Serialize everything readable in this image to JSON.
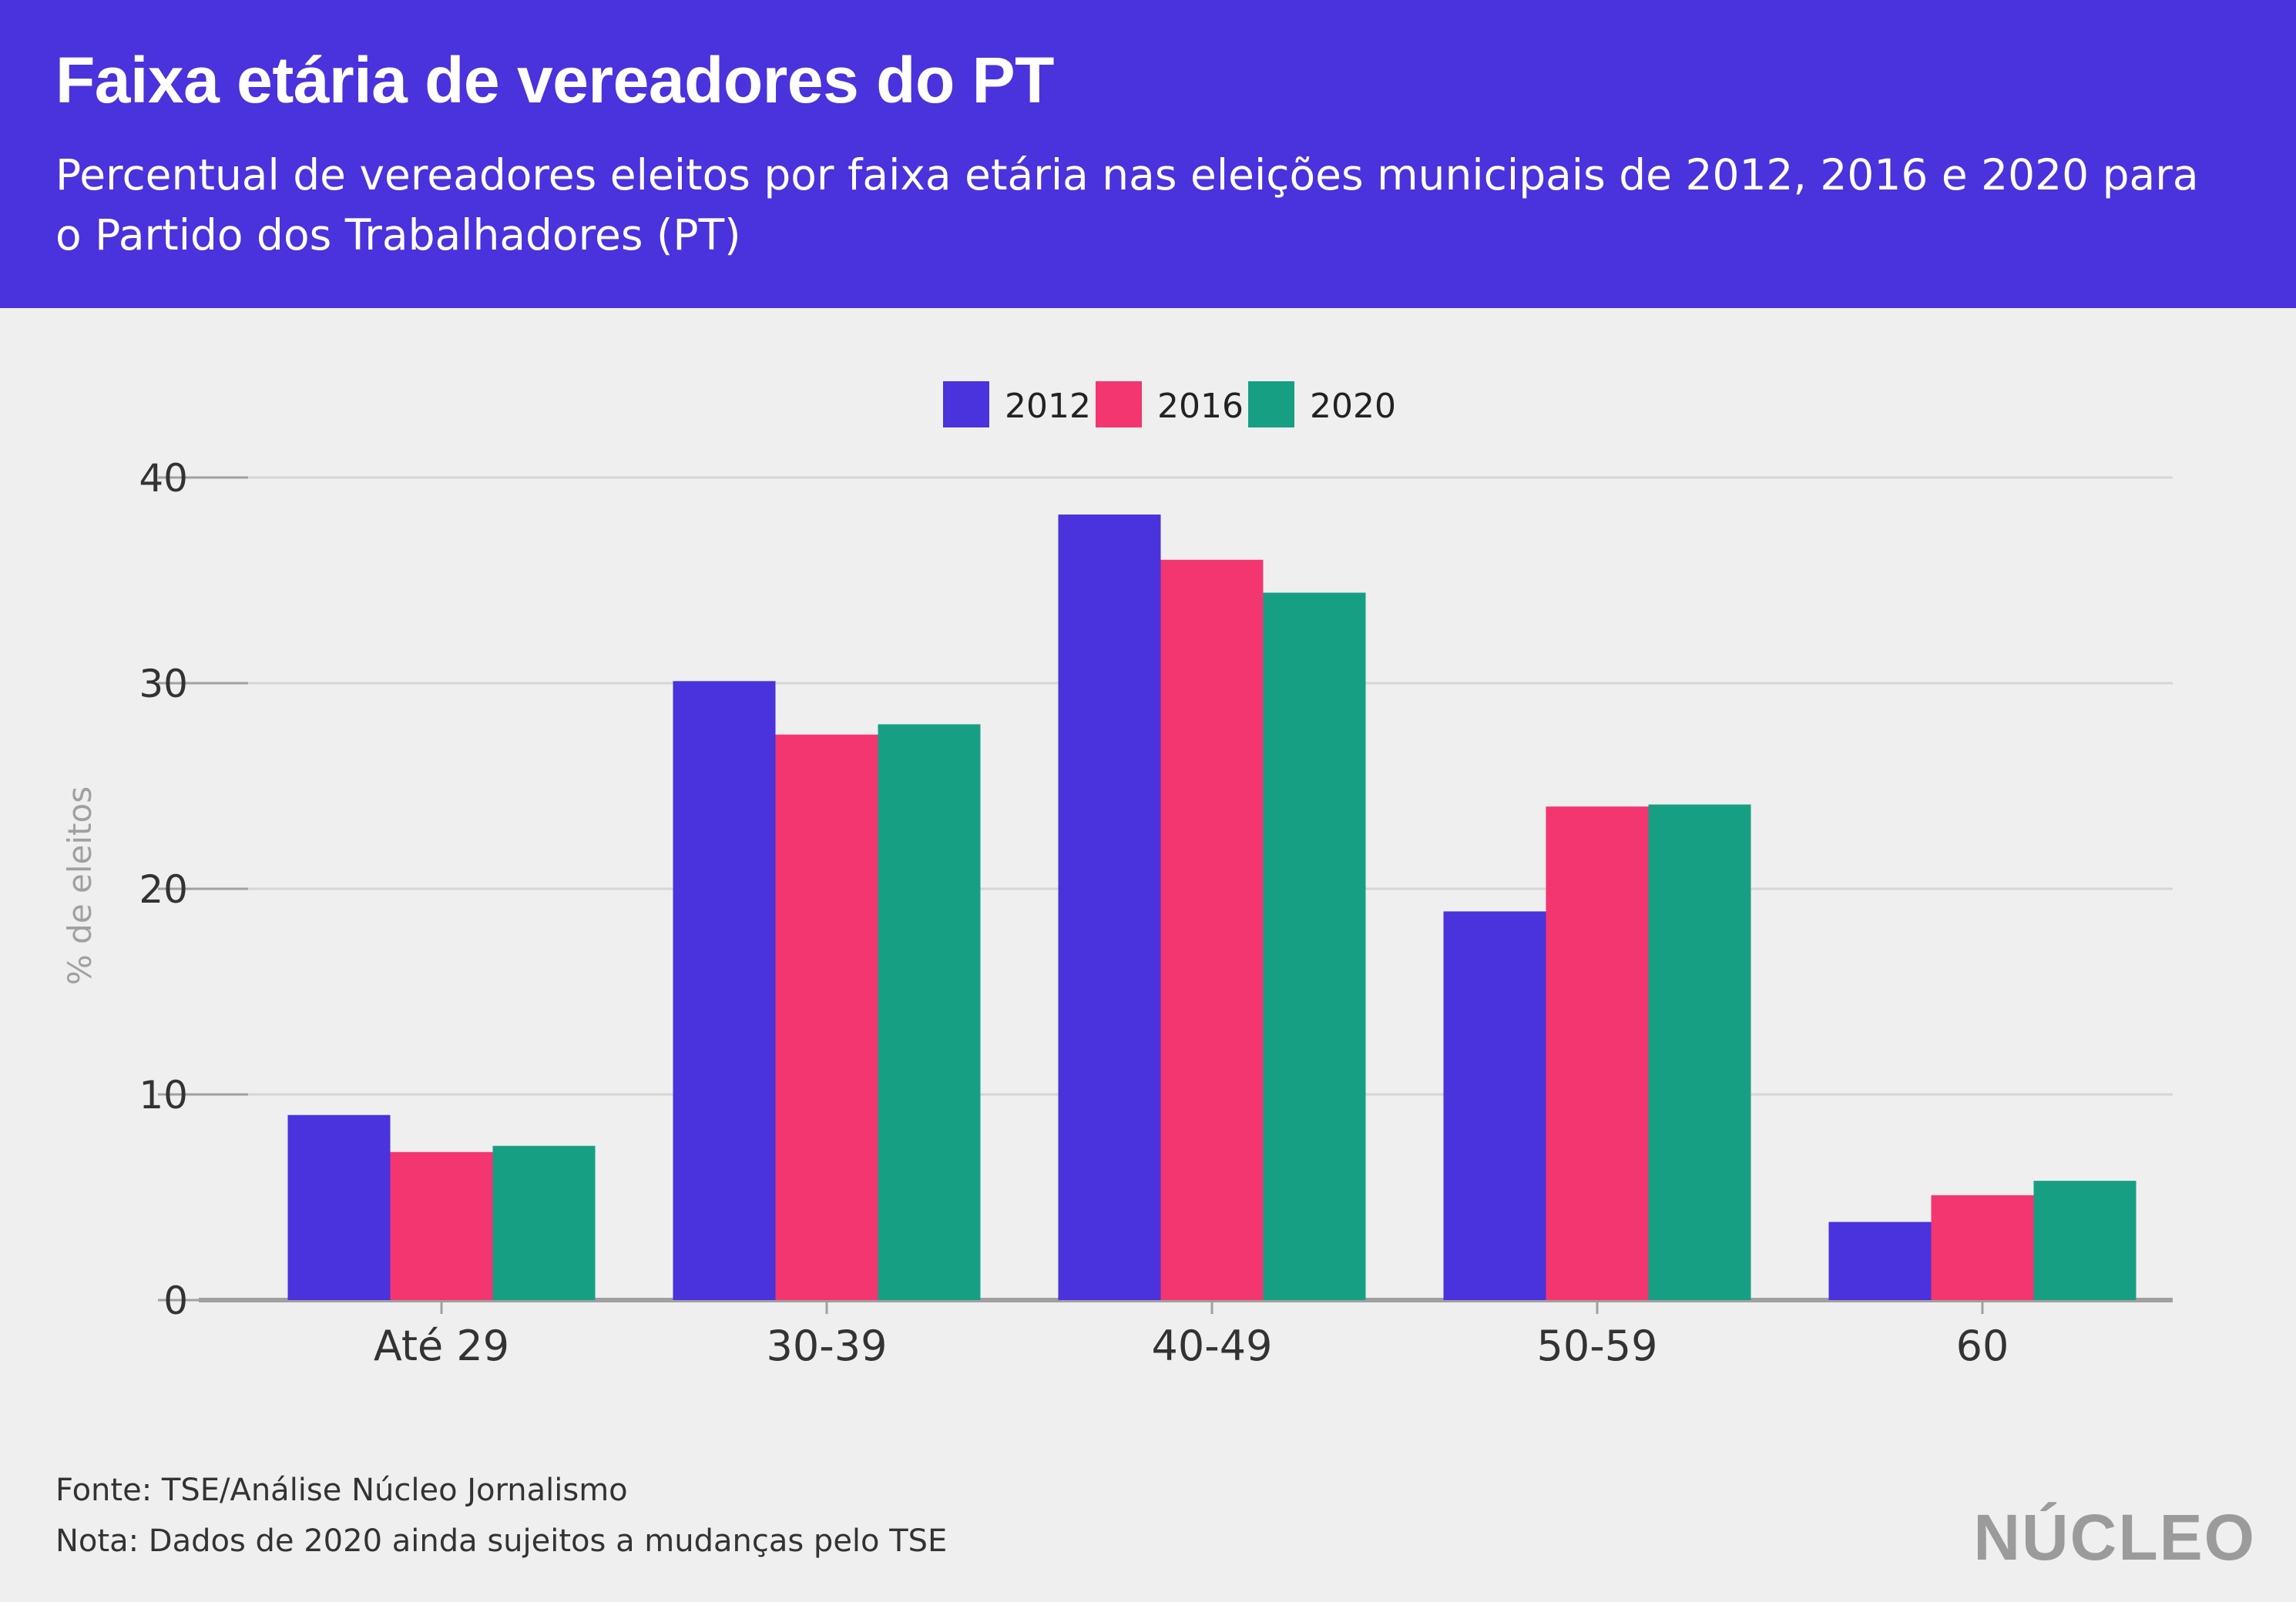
{
  "header": {
    "title": "Faixa etária de vereadores do PT",
    "subtitle": "Percentual de vereadores eleitos por faixa etária nas eleições municipais de 2012, 2016 e 2020 para o Partido dos Trabalhadores (PT)"
  },
  "colors": {
    "header_bg": "#4a32dc",
    "background": "#efefef",
    "s2012": "#4a32dc",
    "s2016": "#f33670",
    "s2020": "#179f84"
  },
  "chart_data": {
    "type": "bar",
    "ylabel": "% de eleitos",
    "xlabel": "",
    "ylim": [
      0,
      40
    ],
    "yticks": [
      "0",
      "10",
      "20",
      "30",
      "40"
    ],
    "grid": true,
    "legend_position": "top-center",
    "categories": [
      "Até 29",
      "30-39",
      "40-49",
      "50-59",
      "60"
    ],
    "series": [
      {
        "name": "2012",
        "color": "#4a32dc",
        "values": [
          9.0,
          30.1,
          38.2,
          18.9,
          3.8
        ]
      },
      {
        "name": "2016",
        "color": "#f33670",
        "values": [
          7.2,
          27.5,
          36.0,
          24.0,
          5.1
        ]
      },
      {
        "name": "2020",
        "color": "#179f84",
        "values": [
          7.5,
          28.0,
          34.4,
          24.1,
          5.8
        ]
      }
    ]
  },
  "footer": {
    "source": "Fonte: TSE/Análise Núcleo Jornalismo",
    "note": "Nota: Dados de 2020 ainda sujeitos a mudanças pelo TSE"
  },
  "logo": {
    "text": "NÚCLEO"
  }
}
